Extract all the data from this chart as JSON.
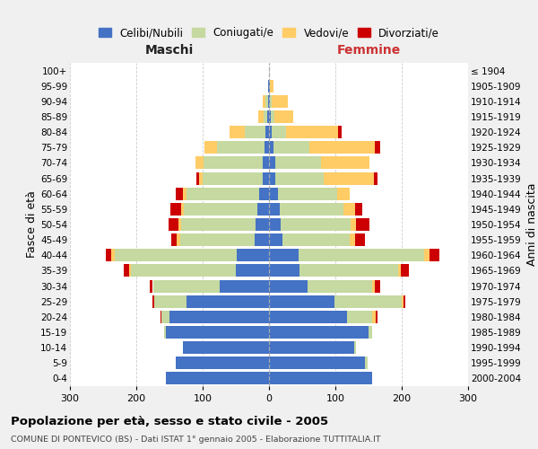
{
  "age_groups": [
    "0-4",
    "5-9",
    "10-14",
    "15-19",
    "20-24",
    "25-29",
    "30-34",
    "35-39",
    "40-44",
    "45-49",
    "50-54",
    "55-59",
    "60-64",
    "65-69",
    "70-74",
    "75-79",
    "80-84",
    "85-89",
    "90-94",
    "95-99",
    "100+"
  ],
  "birth_years": [
    "2000-2004",
    "1995-1999",
    "1990-1994",
    "1985-1989",
    "1980-1984",
    "1975-1979",
    "1970-1974",
    "1965-1969",
    "1960-1964",
    "1955-1959",
    "1950-1954",
    "1945-1949",
    "1940-1944",
    "1935-1939",
    "1930-1934",
    "1925-1929",
    "1920-1924",
    "1915-1919",
    "1910-1914",
    "1905-1909",
    "≤ 1904"
  ],
  "males": {
    "celibi": [
      155,
      140,
      130,
      155,
      150,
      125,
      75,
      50,
      48,
      22,
      20,
      18,
      15,
      10,
      9,
      7,
      5,
      3,
      2,
      2,
      0
    ],
    "coniugati": [
      0,
      0,
      0,
      3,
      12,
      48,
      100,
      158,
      185,
      112,
      112,
      110,
      110,
      90,
      90,
      72,
      32,
      5,
      3,
      0,
      0
    ],
    "vedovi": [
      0,
      0,
      0,
      0,
      0,
      0,
      0,
      3,
      5,
      5,
      5,
      5,
      5,
      5,
      12,
      18,
      22,
      8,
      5,
      0,
      0
    ],
    "divorziati": [
      0,
      0,
      0,
      0,
      2,
      3,
      5,
      8,
      8,
      8,
      15,
      15,
      10,
      5,
      0,
      0,
      0,
      0,
      0,
      0,
      0
    ]
  },
  "females": {
    "nubili": [
      155,
      145,
      128,
      150,
      118,
      98,
      58,
      46,
      44,
      20,
      18,
      16,
      13,
      9,
      9,
      7,
      4,
      3,
      2,
      2,
      0
    ],
    "coniugate": [
      0,
      3,
      3,
      5,
      38,
      102,
      98,
      148,
      190,
      102,
      105,
      96,
      90,
      74,
      70,
      54,
      22,
      5,
      2,
      0,
      0
    ],
    "vedove": [
      0,
      0,
      0,
      0,
      5,
      3,
      3,
      5,
      8,
      8,
      8,
      18,
      18,
      75,
      72,
      98,
      78,
      28,
      24,
      5,
      0
    ],
    "divorziate": [
      0,
      0,
      0,
      0,
      3,
      3,
      8,
      12,
      15,
      15,
      20,
      10,
      0,
      5,
      0,
      8,
      5,
      0,
      0,
      0,
      0
    ]
  },
  "colors": {
    "celibi_nubili": "#4472C4",
    "coniugati": "#C5D9A0",
    "vedovi": "#FFCC66",
    "divorziati": "#CC0000"
  },
  "title": "Popolazione per età, sesso e stato civile - 2005",
  "subtitle": "COMUNE DI PONTEVICO (BS) - Dati ISTAT 1° gennaio 2005 - Elaborazione TUTTITALIA.IT",
  "xlabel_left": "Maschi",
  "xlabel_right": "Femmine",
  "ylabel_left": "Fasce di età",
  "ylabel_right": "Anni di nascita",
  "xlim": 300,
  "legend_labels": [
    "Celibi/Nubili",
    "Coniugati/e",
    "Vedovi/e",
    "Divorziati/e"
  ],
  "background_color": "#f0f0f0",
  "plot_bg_color": "#ffffff"
}
